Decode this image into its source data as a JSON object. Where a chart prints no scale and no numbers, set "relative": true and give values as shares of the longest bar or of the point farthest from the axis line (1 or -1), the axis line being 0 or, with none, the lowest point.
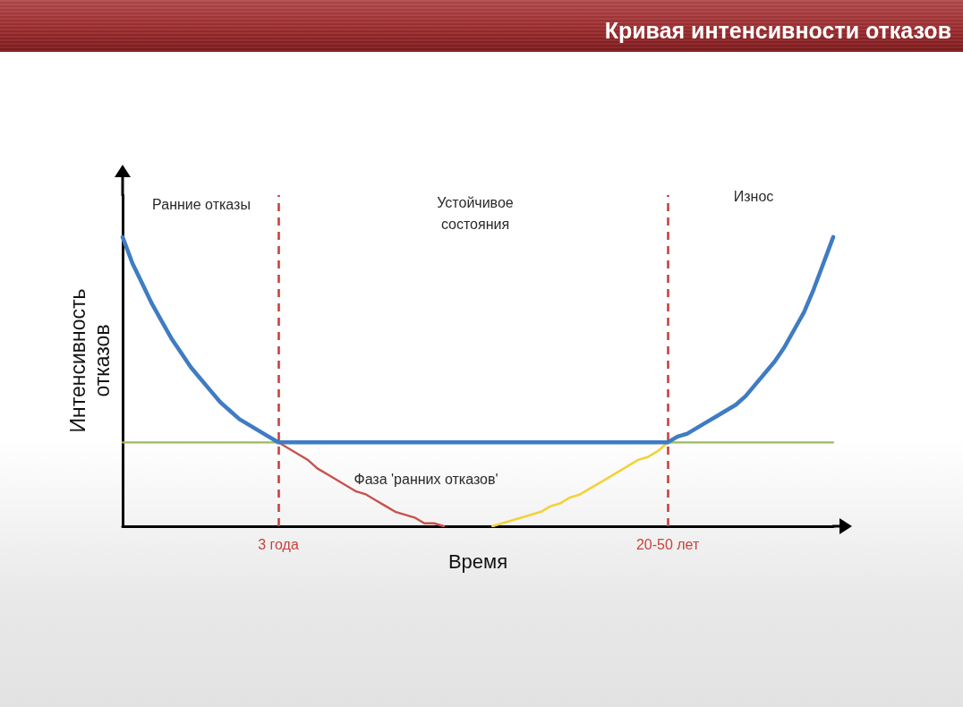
{
  "chart_data": {
    "type": "line",
    "title": "Кривая интенсивности отказов",
    "xlabel": "Время",
    "ylabel": "Интенсивность отказов",
    "relative": true,
    "marker": "none",
    "line_style": "solid",
    "categories": [
      null,
      null,
      null,
      null,
      null,
      null,
      null,
      null,
      null,
      null,
      null,
      null,
      null,
      null,
      null,
      null,
      "3 года",
      null,
      null,
      null,
      null,
      null,
      null,
      null,
      null,
      null,
      null,
      null,
      null,
      null,
      null,
      null,
      null,
      null,
      null,
      null,
      null,
      null,
      null,
      null,
      null,
      null,
      null,
      null,
      null,
      null,
      null,
      null,
      null,
      null,
      null,
      null,
      null,
      null,
      null,
      null,
      "20-50 лет",
      null,
      null,
      null,
      null,
      null,
      null,
      null,
      null,
      null,
      null,
      null,
      null,
      null,
      null,
      null,
      null,
      null
    ],
    "series": [
      {
        "color": "#9bbb59",
        "values": [
          0.29,
          0.29,
          0.29,
          0.29,
          0.29,
          0.29,
          0.29,
          0.29,
          0.29,
          0.29,
          0.29,
          0.29,
          0.29,
          0.29,
          0.29,
          0.29,
          0.29,
          null,
          null,
          null,
          null,
          null,
          null,
          null,
          null,
          null,
          null,
          null,
          null,
          null,
          null,
          null,
          null,
          null,
          null,
          null,
          null,
          null,
          null,
          null,
          null,
          null,
          null,
          null,
          null,
          null,
          null,
          null,
          null,
          null,
          null,
          null,
          null,
          null,
          null,
          null,
          0.29,
          0.29,
          0.29,
          0.29,
          0.29,
          0.29,
          0.29,
          0.29,
          0.29,
          0.29,
          0.29,
          0.29,
          0.29,
          0.29,
          0.29,
          0.29,
          0.29,
          0.29
        ]
      },
      {
        "color": "#c8524d",
        "values": [
          null,
          null,
          null,
          null,
          null,
          null,
          null,
          null,
          null,
          null,
          null,
          null,
          null,
          null,
          null,
          null,
          0.29,
          0.27,
          0.25,
          0.23,
          0.2,
          0.18,
          0.16,
          0.14,
          0.12,
          0.11,
          0.09,
          0.07,
          0.05,
          0.04,
          0.03,
          0.01,
          0.01,
          0,
          null,
          null,
          null,
          null,
          null,
          null,
          null,
          null,
          null,
          null,
          null,
          null,
          null,
          null,
          null,
          null,
          null,
          null,
          null,
          null,
          null,
          null,
          null,
          null,
          null,
          null,
          null,
          null,
          null,
          null,
          null,
          null,
          null,
          null,
          null,
          null,
          null,
          null,
          null,
          null
        ]
      },
      {
        "color": "#f2d23a",
        "values": [
          null,
          null,
          null,
          null,
          null,
          null,
          null,
          null,
          null,
          null,
          null,
          null,
          null,
          null,
          null,
          null,
          null,
          null,
          null,
          null,
          null,
          null,
          null,
          null,
          null,
          null,
          null,
          null,
          null,
          null,
          null,
          null,
          null,
          null,
          null,
          null,
          null,
          null,
          0,
          0.01,
          0.02,
          0.03,
          0.04,
          0.05,
          0.07,
          0.08,
          0.1,
          0.11,
          0.13,
          0.15,
          0.17,
          0.19,
          0.21,
          0.23,
          0.24,
          0.26,
          0.29,
          null,
          null,
          null,
          null,
          null,
          null,
          null,
          null,
          null,
          null,
          null,
          null,
          null,
          null,
          null,
          null,
          null
        ]
      },
      {
        "color": "#3f7cc2",
        "values": [
          1,
          0.91,
          0.84,
          0.77,
          0.71,
          0.65,
          0.6,
          0.55,
          0.51,
          0.47,
          0.43,
          0.4,
          0.37,
          0.35,
          0.33,
          0.31,
          0.29,
          0.29,
          0.29,
          0.29,
          0.29,
          0.29,
          0.29,
          0.29,
          0.29,
          0.29,
          0.29,
          0.29,
          0.29,
          0.29,
          0.29,
          0.29,
          0.29,
          0.29,
          0.29,
          0.29,
          0.29,
          0.29,
          0.29,
          0.29,
          0.29,
          0.29,
          0.29,
          0.29,
          0.29,
          0.29,
          0.29,
          0.29,
          0.29,
          0.29,
          0.29,
          0.29,
          0.29,
          0.29,
          0.29,
          0.29,
          0.29,
          0.31,
          0.32,
          0.34,
          0.36,
          0.38,
          0.4,
          0.42,
          0.45,
          0.49,
          0.53,
          0.57,
          0.62,
          0.68,
          0.74,
          0.82,
          0.91,
          1
        ]
      }
    ],
    "ref_lines": [
      {
        "axis": "x",
        "value": "3 года",
        "color": "#c8423b",
        "line_style": "dashed"
      },
      {
        "axis": "x",
        "value": "20-50 лет",
        "color": "#c8423b",
        "line_style": "dashed"
      }
    ],
    "annotations": [
      "Ранние отказы",
      "Устойчивое состояния",
      "Износ",
      "Фаза 'ранних отказов'"
    ]
  }
}
